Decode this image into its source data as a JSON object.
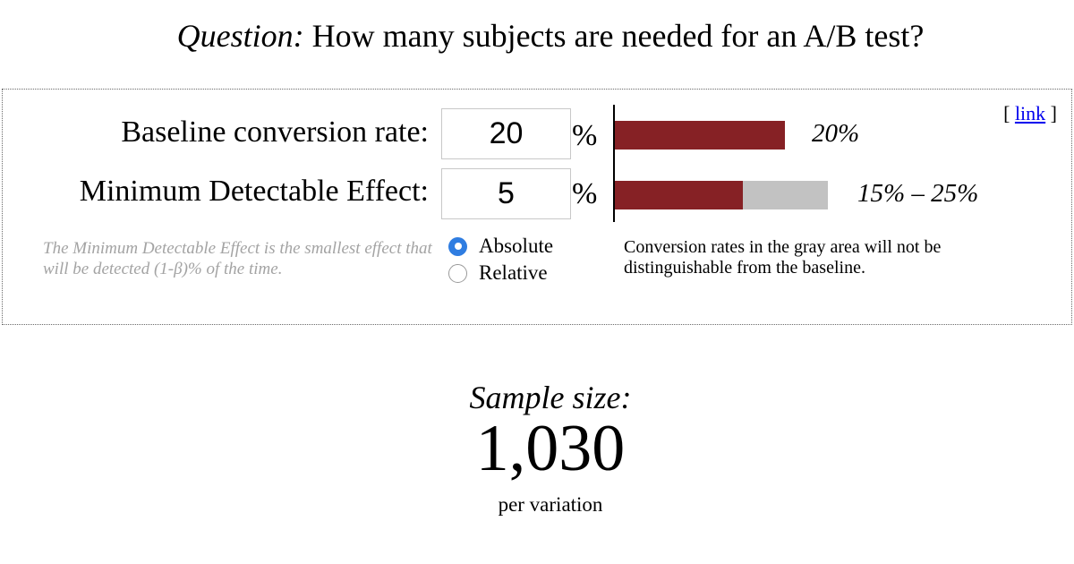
{
  "header": {
    "question_prefix": "Question:",
    "question_text": "How many subjects are needed for an A/B test?"
  },
  "calculator": {
    "link_open": "[",
    "link_label": "link",
    "link_close": "]",
    "baseline": {
      "label": "Baseline conversion rate:",
      "value": "20",
      "unit": "%",
      "bar_label": "20%",
      "rate_fraction": 0.2
    },
    "mde": {
      "label": "Minimum Detectable Effect:",
      "value": "5",
      "unit": "%",
      "range_label": "15% – 25%",
      "range_low_fraction": 0.15,
      "range_high_fraction": 0.25,
      "explanation": "The Minimum Detectable Effect is the smallest effect that will be detected (1-β)% of the time."
    },
    "mode_options": [
      {
        "label": "Absolute",
        "selected": true
      },
      {
        "label": "Relative",
        "selected": false
      }
    ],
    "gray_note": "Conversion rates in the gray area will not be distinguishable from the baseline.",
    "colors": {
      "bar_red": "#862125",
      "bar_gray": "#c2c2c2",
      "radio_blue": "#2f7de1",
      "link_blue": "#0000ee"
    }
  },
  "result": {
    "label": "Sample size:",
    "value": "1,030",
    "unit_note": "per variation"
  }
}
